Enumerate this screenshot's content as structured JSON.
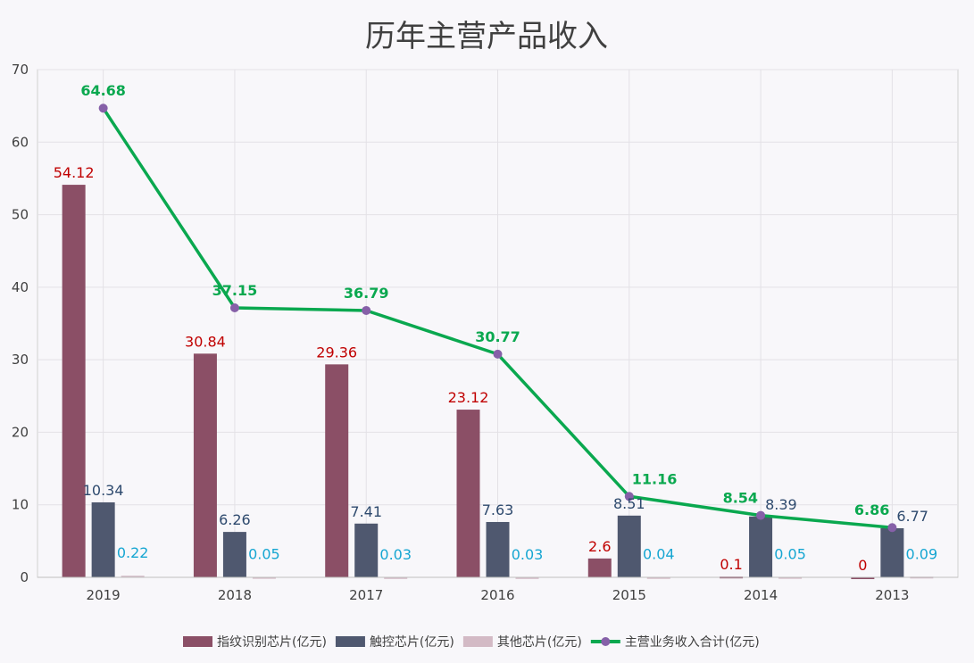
{
  "chart_data": {
    "type": "bar+line",
    "title": "历年主营产品收入",
    "categories": [
      "2019",
      "2018",
      "2017",
      "2016",
      "2015",
      "2014",
      "2013"
    ],
    "ylim": [
      0,
      70
    ],
    "yticks": [
      0,
      10,
      20,
      30,
      40,
      50,
      60,
      70
    ],
    "grid": true,
    "legend_position": "bottom",
    "series": [
      {
        "name": "指纹识别芯片(亿元)",
        "type": "bar",
        "color": "#8b4f66",
        "label_color": "#c00000",
        "values": [
          54.12,
          30.84,
          29.36,
          23.12,
          2.6,
          0.1,
          0
        ]
      },
      {
        "name": "触控芯片(亿元)",
        "type": "bar",
        "color": "#4f586f",
        "label_color": "#2e4a6e",
        "values": [
          10.34,
          6.26,
          7.41,
          7.63,
          8.51,
          8.39,
          6.77
        ]
      },
      {
        "name": "其他芯片(亿元)",
        "type": "bar",
        "color": "#d3bac5",
        "label_color": "#16a6d2",
        "values": [
          0.22,
          0.05,
          0.03,
          0.03,
          0.04,
          0.05,
          0.09
        ]
      },
      {
        "name": "主营业务收入合计(亿元)",
        "type": "line",
        "color": "#0aa84f",
        "marker_color": "#8660a8",
        "label_color": "#0aa84f",
        "values": [
          64.68,
          37.15,
          36.79,
          30.77,
          11.16,
          8.54,
          6.86
        ]
      }
    ]
  }
}
